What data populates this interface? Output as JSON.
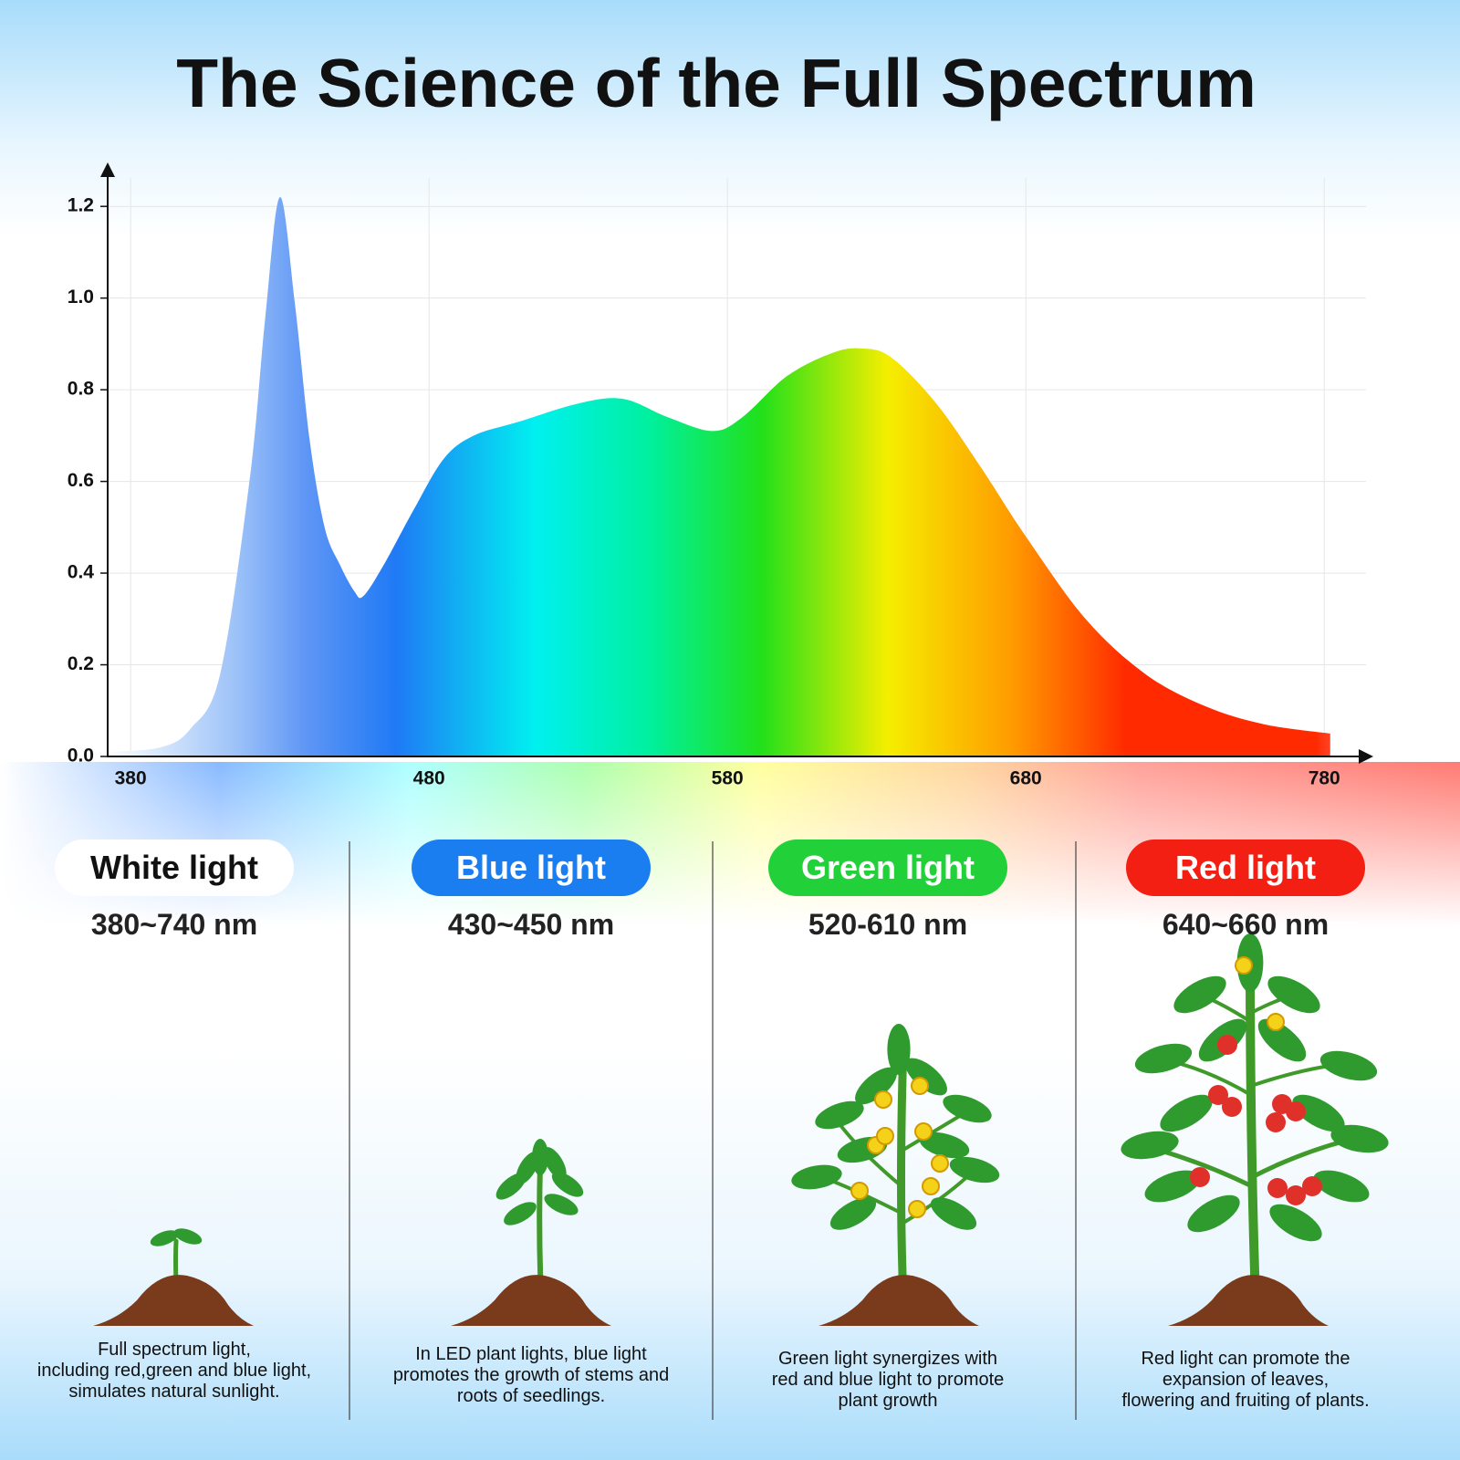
{
  "chart_data": {
    "type": "area",
    "title": "The Science of the Full Spectrum",
    "x": [
      372,
      390,
      400,
      410,
      420,
      425,
      430,
      435,
      440,
      445,
      450,
      455,
      458,
      465,
      475,
      485,
      495,
      510,
      530,
      545,
      560,
      575,
      585,
      600,
      615,
      625,
      635,
      650,
      665,
      680,
      700,
      720,
      740,
      760,
      782
    ],
    "values": [
      0.01,
      0.02,
      0.06,
      0.18,
      0.61,
      0.95,
      1.22,
      0.99,
      0.69,
      0.5,
      0.42,
      0.36,
      0.35,
      0.42,
      0.54,
      0.65,
      0.7,
      0.73,
      0.77,
      0.78,
      0.74,
      0.71,
      0.74,
      0.83,
      0.88,
      0.89,
      0.87,
      0.77,
      0.63,
      0.48,
      0.3,
      0.18,
      0.11,
      0.07,
      0.05
    ],
    "xlim": [
      372,
      794
    ],
    "ylim": [
      0,
      1.28
    ],
    "xticks": [
      380,
      480,
      580,
      680,
      780
    ],
    "yticks": [
      {
        "value": 0,
        "label": "0.0"
      },
      0.2,
      0.4,
      0.6,
      0.8,
      {
        "value": 1,
        "label": "1.0"
      },
      1.2
    ],
    "grid": true
  },
  "panels": [
    {
      "label": "White light",
      "range": "380~740 nm",
      "color": "#ffffff",
      "text_color": "#111111",
      "description": "Full spectrum light,\nincluding red,green and blue light,\nsimulates natural sunlight."
    },
    {
      "label": "Blue light",
      "range": "430~450 nm",
      "color": "#1a7df0",
      "text_color": "#ffffff",
      "description": "In LED plant lights, blue light\npromotes the growth of stems and\nroots of seedlings."
    },
    {
      "label": "Green light",
      "range": "520-610 nm",
      "color": "#22d13a",
      "text_color": "#ffffff",
      "description": "Green light synergizes with\nred and blue light to promote\nplant growth"
    },
    {
      "label": "Red light",
      "range": "640~660 nm",
      "color": "#f21f12",
      "text_color": "#ffffff",
      "description": "Red light can promote the\nexpansion of leaves,\nflowering and fruiting of plants."
    }
  ]
}
